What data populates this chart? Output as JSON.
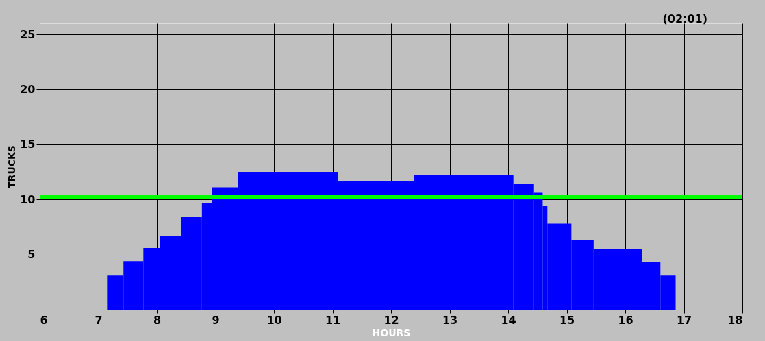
{
  "chart_data": {
    "type": "histogram",
    "xlabel": "HOURS",
    "ylabel": "TRUCKS",
    "annotations": [
      "(02:01)"
    ],
    "bins": [
      7.15,
      7.43,
      7.77,
      8.05,
      8.41,
      8.77,
      8.94,
      9.39,
      11.09,
      12.39,
      14.09,
      14.43,
      14.59,
      14.67,
      15.08,
      15.46,
      16.29,
      16.6,
      16.86
    ],
    "values": [
      3.1,
      4.4,
      5.6,
      6.7,
      8.4,
      9.7,
      11.1,
      12.5,
      11.7,
      12.2,
      11.4,
      10.6,
      9.4,
      7.8,
      6.3,
      5.5,
      4.3,
      3.1
    ],
    "color": "#0000ff",
    "xlim": [
      6,
      18
    ],
    "xticks": [
      6,
      7,
      8,
      9,
      10,
      11,
      12,
      13,
      14,
      15,
      16,
      17,
      18
    ],
    "ylim": [
      0,
      26
    ],
    "yticks": [
      5,
      10,
      15,
      20,
      25
    ],
    "ref_lines": [
      {
        "axis": "y",
        "value": 10.2,
        "color": "#00ff00"
      }
    ],
    "grid": true
  }
}
